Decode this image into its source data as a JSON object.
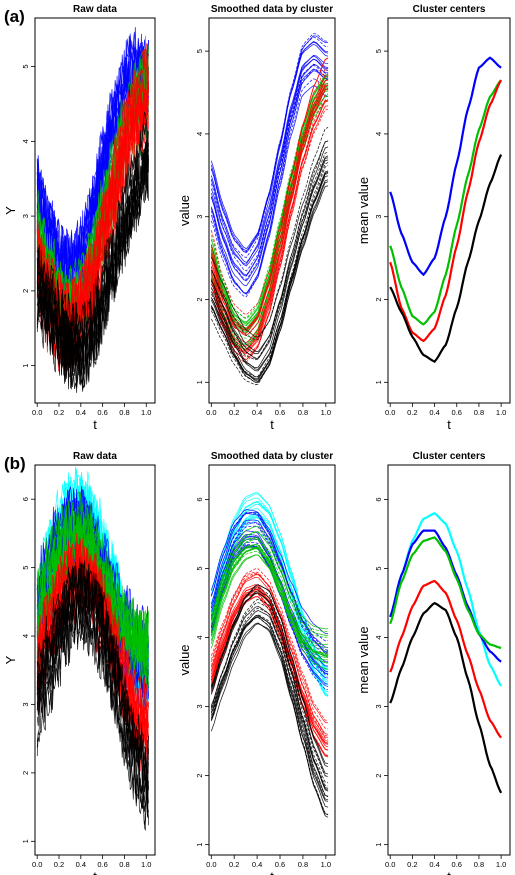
{
  "labels": {
    "a": "(a)",
    "b": "(b)"
  },
  "chart_data": [
    {
      "id": "a1",
      "type": "line",
      "title": "Raw data",
      "xlabel": "t",
      "ylabel": "Y",
      "xlim": [
        -0.02,
        1.08
      ],
      "ylim": [
        0.5,
        5.65
      ],
      "xticks": [
        0.0,
        0.2,
        0.4,
        0.6,
        0.8,
        1.0
      ],
      "yticks": [
        1,
        2,
        3,
        4,
        5
      ],
      "xtick_labels": [
        "0.0",
        "0.2",
        "0.4",
        "0.6",
        "0.8",
        "1.0"
      ],
      "ytick_labels": [
        "1",
        "2",
        "3",
        "4",
        "5"
      ],
      "render": "raw",
      "band": {
        "spread": 0.6,
        "noise": 0.4,
        "curves": 12
      },
      "series": [
        {
          "color": "#0000ff",
          "x": [
            0,
            0.1,
            0.2,
            0.3,
            0.4,
            0.5,
            0.6,
            0.7,
            0.8,
            0.9,
            1.0
          ],
          "y": [
            3.3,
            2.8,
            2.45,
            2.3,
            2.5,
            3.0,
            3.65,
            4.3,
            4.8,
            4.92,
            4.8
          ]
        },
        {
          "color": "#00c000",
          "x": [
            0,
            0.1,
            0.2,
            0.3,
            0.4,
            0.5,
            0.6,
            0.7,
            0.8,
            0.9,
            1.0
          ],
          "y": [
            2.65,
            2.15,
            1.8,
            1.7,
            1.85,
            2.3,
            2.9,
            3.5,
            4.05,
            4.45,
            4.65
          ]
        },
        {
          "color": "#ff0000",
          "x": [
            0,
            0.1,
            0.2,
            0.3,
            0.4,
            0.5,
            0.6,
            0.7,
            0.8,
            0.9,
            1.0
          ],
          "y": [
            2.45,
            1.9,
            1.6,
            1.5,
            1.65,
            2.05,
            2.65,
            3.3,
            3.9,
            4.35,
            4.65
          ]
        },
        {
          "color": "#000000",
          "x": [
            0,
            0.1,
            0.2,
            0.3,
            0.4,
            0.5,
            0.6,
            0.7,
            0.8,
            0.9,
            1.0
          ],
          "y": [
            2.15,
            1.85,
            1.55,
            1.33,
            1.25,
            1.45,
            1.9,
            2.45,
            2.95,
            3.4,
            3.75
          ]
        }
      ]
    },
    {
      "id": "a2",
      "type": "line",
      "title": "Smoothed data by cluster",
      "xlabel": "t",
      "ylabel": "value",
      "xlim": [
        -0.02,
        1.08
      ],
      "ylim": [
        0.75,
        5.4
      ],
      "xticks": [
        0.0,
        0.2,
        0.4,
        0.6,
        0.8,
        1.0
      ],
      "yticks": [
        1,
        2,
        3,
        4,
        5
      ],
      "xtick_labels": [
        "0.0",
        "0.2",
        "0.4",
        "0.6",
        "0.8",
        "1.0"
      ],
      "ytick_labels": [
        "1",
        "2",
        "3",
        "4",
        "5"
      ],
      "render": "smooth",
      "band": {
        "spread": 0.55,
        "noise": 0.05,
        "curves": 18
      },
      "series": [
        {
          "color": "#0000ff",
          "x": [
            0,
            0.1,
            0.2,
            0.3,
            0.4,
            0.5,
            0.6,
            0.7,
            0.8,
            0.9,
            1.0
          ],
          "y": [
            3.3,
            2.8,
            2.45,
            2.3,
            2.5,
            3.0,
            3.65,
            4.3,
            4.8,
            4.92,
            4.8
          ]
        },
        {
          "color": "#00c000",
          "x": [
            0,
            0.1,
            0.2,
            0.3,
            0.4,
            0.5,
            0.6,
            0.7,
            0.8,
            0.9,
            1.0
          ],
          "y": [
            2.65,
            2.15,
            1.8,
            1.7,
            1.85,
            2.3,
            2.9,
            3.5,
            4.05,
            4.45,
            4.65
          ]
        },
        {
          "color": "#ff0000",
          "x": [
            0,
            0.1,
            0.2,
            0.3,
            0.4,
            0.5,
            0.6,
            0.7,
            0.8,
            0.9,
            1.0
          ],
          "y": [
            2.45,
            1.9,
            1.6,
            1.5,
            1.65,
            2.05,
            2.65,
            3.3,
            3.9,
            4.35,
            4.65
          ]
        },
        {
          "color": "#000000",
          "x": [
            0,
            0.1,
            0.2,
            0.3,
            0.4,
            0.5,
            0.6,
            0.7,
            0.8,
            0.9,
            1.0
          ],
          "y": [
            2.15,
            1.85,
            1.55,
            1.33,
            1.25,
            1.45,
            1.9,
            2.45,
            2.95,
            3.4,
            3.75
          ]
        }
      ]
    },
    {
      "id": "a3",
      "type": "line",
      "title": "Cluster centers",
      "xlabel": "t",
      "ylabel": "mean value",
      "xlim": [
        -0.02,
        1.08
      ],
      "ylim": [
        0.75,
        5.4
      ],
      "xticks": [
        0.0,
        0.2,
        0.4,
        0.6,
        0.8,
        1.0
      ],
      "yticks": [
        1,
        2,
        3,
        4,
        5
      ],
      "xtick_labels": [
        "0.0",
        "0.2",
        "0.4",
        "0.6",
        "0.8",
        "1.0"
      ],
      "ytick_labels": [
        "1",
        "2",
        "3",
        "4",
        "5"
      ],
      "render": "center",
      "series": [
        {
          "color": "#0000ff",
          "x": [
            0,
            0.1,
            0.2,
            0.3,
            0.4,
            0.5,
            0.6,
            0.7,
            0.8,
            0.9,
            1.0
          ],
          "y": [
            3.3,
            2.8,
            2.45,
            2.3,
            2.5,
            3.0,
            3.65,
            4.3,
            4.8,
            4.92,
            4.8
          ]
        },
        {
          "color": "#00c000",
          "x": [
            0,
            0.1,
            0.2,
            0.3,
            0.4,
            0.5,
            0.6,
            0.7,
            0.8,
            0.9,
            1.0
          ],
          "y": [
            2.65,
            2.15,
            1.8,
            1.7,
            1.85,
            2.3,
            2.9,
            3.5,
            4.05,
            4.45,
            4.65
          ]
        },
        {
          "color": "#ff0000",
          "x": [
            0,
            0.1,
            0.2,
            0.3,
            0.4,
            0.5,
            0.6,
            0.7,
            0.8,
            0.9,
            1.0
          ],
          "y": [
            2.45,
            1.9,
            1.6,
            1.5,
            1.65,
            2.05,
            2.65,
            3.3,
            3.9,
            4.35,
            4.65
          ]
        },
        {
          "color": "#000000",
          "x": [
            0,
            0.1,
            0.2,
            0.3,
            0.4,
            0.5,
            0.6,
            0.7,
            0.8,
            0.9,
            1.0
          ],
          "y": [
            2.15,
            1.85,
            1.55,
            1.33,
            1.25,
            1.45,
            1.9,
            2.45,
            2.95,
            3.4,
            3.75
          ]
        }
      ]
    },
    {
      "id": "b1",
      "type": "line",
      "title": "Raw data",
      "xlabel": "t",
      "ylabel": "Y",
      "xlim": [
        -0.02,
        1.08
      ],
      "ylim": [
        0.8,
        6.5
      ],
      "xticks": [
        0.0,
        0.2,
        0.4,
        0.6,
        0.8,
        1.0
      ],
      "yticks": [
        1,
        2,
        3,
        4,
        5,
        6
      ],
      "xtick_labels": [
        "0.0",
        "0.2",
        "0.4",
        "0.6",
        "0.8",
        "1.0"
      ],
      "ytick_labels": [
        "1",
        "2",
        "3",
        "4",
        "5",
        "6"
      ],
      "render": "raw",
      "band": {
        "spread": 0.7,
        "noise": 0.4,
        "curves": 12
      },
      "series": [
        {
          "color": "#00ffff",
          "x": [
            0,
            0.1,
            0.2,
            0.3,
            0.4,
            0.5,
            0.6,
            0.7,
            0.8,
            0.9,
            1.0
          ],
          "y": [
            4.3,
            4.9,
            5.4,
            5.72,
            5.8,
            5.65,
            5.25,
            4.7,
            4.1,
            3.6,
            3.3
          ]
        },
        {
          "color": "#0000ff",
          "x": [
            0,
            0.1,
            0.2,
            0.3,
            0.4,
            0.5,
            0.6,
            0.7,
            0.8,
            0.9,
            1.0
          ],
          "y": [
            4.3,
            4.9,
            5.35,
            5.55,
            5.55,
            5.3,
            4.9,
            4.45,
            4.05,
            3.8,
            3.65
          ]
        },
        {
          "color": "#00c000",
          "x": [
            0,
            0.1,
            0.2,
            0.3,
            0.4,
            0.5,
            0.6,
            0.7,
            0.8,
            0.9,
            1.0
          ],
          "y": [
            4.2,
            4.8,
            5.2,
            5.4,
            5.45,
            5.25,
            4.85,
            4.4,
            4.05,
            3.9,
            3.85
          ]
        },
        {
          "color": "#ff0000",
          "x": [
            0,
            0.1,
            0.2,
            0.3,
            0.4,
            0.5,
            0.6,
            0.7,
            0.8,
            0.9,
            1.0
          ],
          "y": [
            3.5,
            4.0,
            4.45,
            4.75,
            4.82,
            4.65,
            4.25,
            3.75,
            3.25,
            2.8,
            2.55
          ]
        },
        {
          "color": "#000000",
          "x": [
            0,
            0.1,
            0.2,
            0.3,
            0.4,
            0.5,
            0.6,
            0.7,
            0.8,
            0.9,
            1.0
          ],
          "y": [
            3.05,
            3.55,
            4.0,
            4.35,
            4.5,
            4.4,
            4.0,
            3.4,
            2.75,
            2.15,
            1.75
          ]
        }
      ]
    },
    {
      "id": "b2",
      "type": "line",
      "title": "Smoothed data by cluster",
      "xlabel": "t",
      "ylabel": "value",
      "xlim": [
        -0.02,
        1.08
      ],
      "ylim": [
        0.85,
        6.5
      ],
      "xticks": [
        0.0,
        0.2,
        0.4,
        0.6,
        0.8,
        1.0
      ],
      "yticks": [
        1,
        2,
        3,
        4,
        5,
        6
      ],
      "xtick_labels": [
        "0.0",
        "0.2",
        "0.4",
        "0.6",
        "0.8",
        "1.0"
      ],
      "ytick_labels": [
        "1",
        "2",
        "3",
        "4",
        "5",
        "6"
      ],
      "render": "smooth",
      "band": {
        "spread": 0.6,
        "noise": 0.05,
        "curves": 18
      },
      "series": [
        {
          "color": "#00ffff",
          "x": [
            0,
            0.1,
            0.2,
            0.3,
            0.4,
            0.5,
            0.6,
            0.7,
            0.8,
            0.9,
            1.0
          ],
          "y": [
            4.3,
            4.9,
            5.4,
            5.72,
            5.8,
            5.65,
            5.25,
            4.7,
            4.1,
            3.6,
            3.3
          ]
        },
        {
          "color": "#0000ff",
          "x": [
            0,
            0.1,
            0.2,
            0.3,
            0.4,
            0.5,
            0.6,
            0.7,
            0.8,
            0.9,
            1.0
          ],
          "y": [
            4.3,
            4.9,
            5.35,
            5.55,
            5.55,
            5.3,
            4.9,
            4.45,
            4.05,
            3.8,
            3.65
          ]
        },
        {
          "color": "#00c000",
          "x": [
            0,
            0.1,
            0.2,
            0.3,
            0.4,
            0.5,
            0.6,
            0.7,
            0.8,
            0.9,
            1.0
          ],
          "y": [
            4.2,
            4.8,
            5.2,
            5.4,
            5.45,
            5.25,
            4.85,
            4.4,
            4.05,
            3.9,
            3.85
          ]
        },
        {
          "color": "#ff0000",
          "x": [
            0,
            0.1,
            0.2,
            0.3,
            0.4,
            0.5,
            0.6,
            0.7,
            0.8,
            0.9,
            1.0
          ],
          "y": [
            3.5,
            4.0,
            4.45,
            4.75,
            4.82,
            4.65,
            4.25,
            3.75,
            3.25,
            2.8,
            2.55
          ]
        },
        {
          "color": "#000000",
          "x": [
            0,
            0.1,
            0.2,
            0.3,
            0.4,
            0.5,
            0.6,
            0.7,
            0.8,
            0.9,
            1.0
          ],
          "y": [
            3.05,
            3.55,
            4.0,
            4.35,
            4.5,
            4.4,
            4.0,
            3.4,
            2.75,
            2.15,
            1.75
          ]
        }
      ]
    },
    {
      "id": "b3",
      "type": "line",
      "title": "Cluster centers",
      "xlabel": "t",
      "ylabel": "mean value",
      "xlim": [
        -0.02,
        1.08
      ],
      "ylim": [
        0.85,
        6.5
      ],
      "xticks": [
        0.0,
        0.2,
        0.4,
        0.6,
        0.8,
        1.0
      ],
      "yticks": [
        1,
        2,
        3,
        4,
        5,
        6
      ],
      "xtick_labels": [
        "0.0",
        "0.2",
        "0.4",
        "0.6",
        "0.8",
        "1.0"
      ],
      "ytick_labels": [
        "1",
        "2",
        "3",
        "4",
        "5",
        "6"
      ],
      "render": "center",
      "series": [
        {
          "color": "#00ffff",
          "x": [
            0,
            0.1,
            0.2,
            0.3,
            0.4,
            0.5,
            0.6,
            0.7,
            0.8,
            0.9,
            1.0
          ],
          "y": [
            4.3,
            4.9,
            5.4,
            5.72,
            5.8,
            5.65,
            5.25,
            4.7,
            4.1,
            3.6,
            3.3
          ]
        },
        {
          "color": "#0000ff",
          "x": [
            0,
            0.1,
            0.2,
            0.3,
            0.4,
            0.5,
            0.6,
            0.7,
            0.8,
            0.9,
            1.0
          ],
          "y": [
            4.3,
            4.9,
            5.35,
            5.55,
            5.55,
            5.3,
            4.9,
            4.45,
            4.05,
            3.8,
            3.65
          ]
        },
        {
          "color": "#00c000",
          "x": [
            0,
            0.1,
            0.2,
            0.3,
            0.4,
            0.5,
            0.6,
            0.7,
            0.8,
            0.9,
            1.0
          ],
          "y": [
            4.2,
            4.8,
            5.2,
            5.4,
            5.45,
            5.25,
            4.85,
            4.4,
            4.05,
            3.9,
            3.85
          ]
        },
        {
          "color": "#ff0000",
          "x": [
            0,
            0.1,
            0.2,
            0.3,
            0.4,
            0.5,
            0.6,
            0.7,
            0.8,
            0.9,
            1.0
          ],
          "y": [
            3.5,
            4.0,
            4.45,
            4.75,
            4.82,
            4.65,
            4.25,
            3.75,
            3.25,
            2.8,
            2.55
          ]
        },
        {
          "color": "#000000",
          "x": [
            0,
            0.1,
            0.2,
            0.3,
            0.4,
            0.5,
            0.6,
            0.7,
            0.8,
            0.9,
            1.0
          ],
          "y": [
            3.05,
            3.55,
            4.0,
            4.35,
            4.5,
            4.4,
            4.0,
            3.4,
            2.75,
            2.15,
            1.75
          ]
        }
      ]
    }
  ]
}
